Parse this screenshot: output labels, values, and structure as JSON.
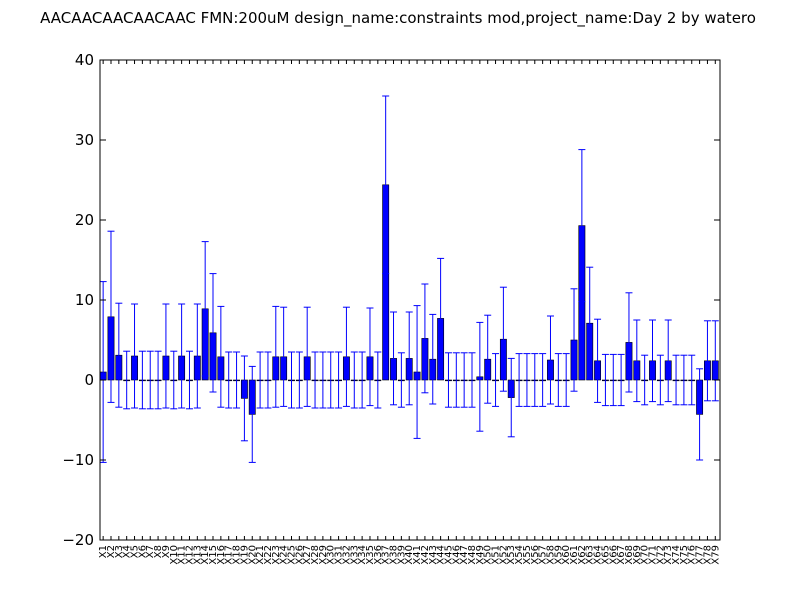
{
  "chart_data": {
    "type": "bar",
    "title": "AACAACAACAACAAC  FMN:200uM  design_name:constraints mod,project_name:Day 2 by watero",
    "xlabel": "",
    "ylabel": "",
    "ylim": [
      -20,
      40
    ],
    "yticks": [
      "−20",
      "−10",
      "0",
      "10",
      "20",
      "30",
      "40"
    ],
    "grid": false,
    "bar_color": "#0000ff",
    "error_color": "#0000ff",
    "categories": [
      "X1",
      "X2",
      "X3",
      "X4",
      "X5",
      "X6",
      "X7",
      "X8",
      "X9",
      "X10",
      "X11",
      "X12",
      "X13",
      "X14",
      "X15",
      "X16",
      "X17",
      "X18",
      "X19",
      "X20",
      "X21",
      "X22",
      "X23",
      "X24",
      "X25",
      "X26",
      "X27",
      "X28",
      "X29",
      "X30",
      "X31",
      "X32",
      "X33",
      "X34",
      "X35",
      "X36",
      "X37",
      "X38",
      "X39",
      "X40",
      "X41",
      "X42",
      "X43",
      "X44",
      "X45",
      "X46",
      "X47",
      "X48",
      "X49",
      "X50",
      "X51",
      "X52",
      "X53",
      "X54",
      "X55",
      "X56",
      "X57",
      "X58",
      "X59",
      "X60",
      "X61",
      "X62",
      "X63",
      "X64",
      "X65",
      "X66",
      "X67",
      "X68",
      "X69",
      "X70",
      "X71",
      "X72",
      "X73",
      "X74",
      "X75",
      "X76",
      "X77",
      "X78",
      "X79"
    ],
    "values": [
      1.0,
      7.9,
      3.1,
      0,
      3.0,
      0,
      0,
      0,
      3.0,
      0,
      3.0,
      0,
      3.0,
      8.9,
      5.9,
      2.9,
      0,
      0,
      -2.3,
      -4.3,
      0,
      0,
      2.9,
      2.9,
      0,
      0,
      2.9,
      0,
      0,
      0,
      0,
      2.9,
      0,
      0,
      2.9,
      0,
      24.4,
      2.7,
      0,
      2.7,
      1.0,
      5.2,
      2.6,
      7.7,
      0,
      0,
      0,
      0,
      0.4,
      2.6,
      0,
      5.1,
      -2.2,
      0,
      0,
      0,
      0,
      2.5,
      0,
      0,
      5.0,
      19.3,
      7.1,
      2.4,
      0,
      0,
      0,
      4.7,
      2.4,
      0,
      2.4,
      0,
      2.4,
      0,
      0,
      0,
      -4.3,
      2.4,
      2.4
    ],
    "errors": [
      11.3,
      10.7,
      6.5,
      3.6,
      6.5,
      3.6,
      3.6,
      3.6,
      6.5,
      3.6,
      6.5,
      3.6,
      6.5,
      8.4,
      7.4,
      6.3,
      3.5,
      3.5,
      5.3,
      6.0,
      3.5,
      3.5,
      6.3,
      6.2,
      3.5,
      3.5,
      6.2,
      3.5,
      3.5,
      3.5,
      3.5,
      6.2,
      3.5,
      3.5,
      6.1,
      3.5,
      11.1,
      5.8,
      3.4,
      5.8,
      8.3,
      6.8,
      5.6,
      7.5,
      3.4,
      3.4,
      3.4,
      3.4,
      6.8,
      5.5,
      3.3,
      6.5,
      4.9,
      3.3,
      3.3,
      3.3,
      3.3,
      5.5,
      3.3,
      3.3,
      6.4,
      9.5,
      7.0,
      5.2,
      3.2,
      3.2,
      3.2,
      6.2,
      5.1,
      3.1,
      5.1,
      3.1,
      5.1,
      3.1,
      3.1,
      3.1,
      5.7,
      5.0,
      5.0
    ]
  }
}
